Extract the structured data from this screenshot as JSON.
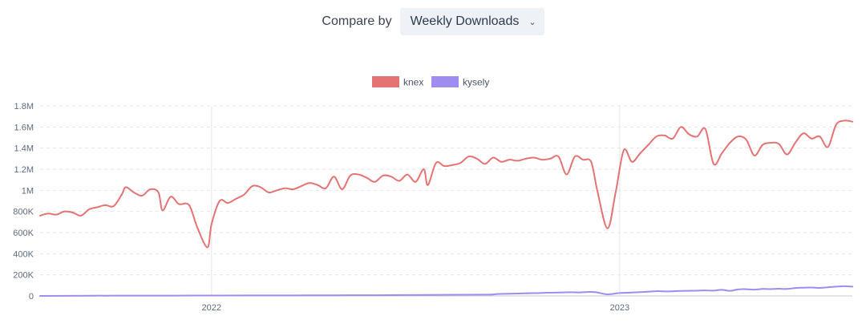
{
  "controls": {
    "compare_label": "Compare by",
    "compare_value": "Weekly Downloads",
    "chevron_icon": "chevron-down-icon"
  },
  "chart_data": {
    "type": "line",
    "legend_placement": "top-center",
    "grid": true,
    "ylim": [
      0,
      1800000
    ],
    "y_ticks": [
      0,
      200000,
      400000,
      600000,
      800000,
      1000000,
      1200000,
      1400000,
      1600000,
      1800000
    ],
    "y_tick_labels": [
      "0",
      "200K",
      "400K",
      "600K",
      "800K",
      "1M",
      "1.2M",
      "1.4M",
      "1.6M",
      "1.8M"
    ],
    "x_tick_labels": [
      "2022",
      "2023"
    ],
    "x_tick_values": [
      2022.0,
      2023.0
    ],
    "x_range": [
      2021.58,
      2023.57
    ],
    "series": [
      {
        "name": "knex",
        "color": "#e57373",
        "points": [
          [
            2021.58,
            760000
          ],
          [
            2021.6,
            780000
          ],
          [
            2021.62,
            770000
          ],
          [
            2021.64,
            800000
          ],
          [
            2021.66,
            790000
          ],
          [
            2021.68,
            760000
          ],
          [
            2021.7,
            820000
          ],
          [
            2021.72,
            840000
          ],
          [
            2021.74,
            860000
          ],
          [
            2021.76,
            850000
          ],
          [
            2021.78,
            960000
          ],
          [
            2021.79,
            1030000
          ],
          [
            2021.81,
            980000
          ],
          [
            2021.83,
            950000
          ],
          [
            2021.85,
            1010000
          ],
          [
            2021.87,
            980000
          ],
          [
            2021.88,
            810000
          ],
          [
            2021.9,
            940000
          ],
          [
            2021.92,
            870000
          ],
          [
            2021.945,
            860000
          ],
          [
            2021.965,
            650000
          ],
          [
            2021.99,
            460000
          ],
          [
            2022.0,
            680000
          ],
          [
            2022.02,
            900000
          ],
          [
            2022.04,
            880000
          ],
          [
            2022.06,
            920000
          ],
          [
            2022.08,
            960000
          ],
          [
            2022.1,
            1040000
          ],
          [
            2022.12,
            1030000
          ],
          [
            2022.14,
            980000
          ],
          [
            2022.16,
            1000000
          ],
          [
            2022.18,
            1020000
          ],
          [
            2022.2,
            1010000
          ],
          [
            2022.22,
            1040000
          ],
          [
            2022.24,
            1070000
          ],
          [
            2022.26,
            1050000
          ],
          [
            2022.28,
            1020000
          ],
          [
            2022.3,
            1130000
          ],
          [
            2022.32,
            1010000
          ],
          [
            2022.34,
            1140000
          ],
          [
            2022.36,
            1150000
          ],
          [
            2022.38,
            1120000
          ],
          [
            2022.4,
            1080000
          ],
          [
            2022.42,
            1140000
          ],
          [
            2022.44,
            1130000
          ],
          [
            2022.46,
            1090000
          ],
          [
            2022.48,
            1150000
          ],
          [
            2022.5,
            1080000
          ],
          [
            2022.52,
            1200000
          ],
          [
            2022.53,
            1050000
          ],
          [
            2022.55,
            1260000
          ],
          [
            2022.57,
            1230000
          ],
          [
            2022.59,
            1240000
          ],
          [
            2022.61,
            1260000
          ],
          [
            2022.63,
            1320000
          ],
          [
            2022.65,
            1300000
          ],
          [
            2022.67,
            1250000
          ],
          [
            2022.69,
            1310000
          ],
          [
            2022.71,
            1270000
          ],
          [
            2022.73,
            1290000
          ],
          [
            2022.75,
            1280000
          ],
          [
            2022.77,
            1300000
          ],
          [
            2022.79,
            1310000
          ],
          [
            2022.81,
            1290000
          ],
          [
            2022.83,
            1300000
          ],
          [
            2022.85,
            1320000
          ],
          [
            2022.87,
            1150000
          ],
          [
            2022.89,
            1320000
          ],
          [
            2022.91,
            1290000
          ],
          [
            2022.93,
            1270000
          ],
          [
            2022.945,
            1000000
          ],
          [
            2022.97,
            640000
          ],
          [
            2022.99,
            980000
          ],
          [
            2023.01,
            1380000
          ],
          [
            2023.03,
            1270000
          ],
          [
            2023.05,
            1350000
          ],
          [
            2023.07,
            1430000
          ],
          [
            2023.09,
            1510000
          ],
          [
            2023.11,
            1520000
          ],
          [
            2023.13,
            1490000
          ],
          [
            2023.15,
            1600000
          ],
          [
            2023.17,
            1530000
          ],
          [
            2023.19,
            1510000
          ],
          [
            2023.21,
            1580000
          ],
          [
            2023.23,
            1250000
          ],
          [
            2023.25,
            1350000
          ],
          [
            2023.27,
            1450000
          ],
          [
            2023.29,
            1510000
          ],
          [
            2023.31,
            1480000
          ],
          [
            2023.33,
            1330000
          ],
          [
            2023.35,
            1430000
          ],
          [
            2023.37,
            1450000
          ],
          [
            2023.39,
            1440000
          ],
          [
            2023.41,
            1340000
          ],
          [
            2023.43,
            1450000
          ],
          [
            2023.45,
            1540000
          ],
          [
            2023.47,
            1490000
          ],
          [
            2023.49,
            1510000
          ],
          [
            2023.51,
            1410000
          ],
          [
            2023.53,
            1620000
          ],
          [
            2023.55,
            1660000
          ],
          [
            2023.57,
            1650000
          ]
        ]
      },
      {
        "name": "kysely",
        "color": "#a08cf0",
        "points": [
          [
            2021.58,
            0
          ],
          [
            2021.7,
            2000
          ],
          [
            2021.8,
            3000
          ],
          [
            2021.9,
            3000
          ],
          [
            2022.0,
            4000
          ],
          [
            2022.1,
            5000
          ],
          [
            2022.2,
            5000
          ],
          [
            2022.3,
            6000
          ],
          [
            2022.4,
            7000
          ],
          [
            2022.5,
            9000
          ],
          [
            2022.6,
            11000
          ],
          [
            2022.68,
            12000
          ],
          [
            2022.7,
            18000
          ],
          [
            2022.72,
            20000
          ],
          [
            2022.74,
            22000
          ],
          [
            2022.76,
            24000
          ],
          [
            2022.78,
            26000
          ],
          [
            2022.8,
            27000
          ],
          [
            2022.82,
            30000
          ],
          [
            2022.84,
            31000
          ],
          [
            2022.86,
            33000
          ],
          [
            2022.88,
            35000
          ],
          [
            2022.9,
            33000
          ],
          [
            2022.92,
            37000
          ],
          [
            2022.94,
            36000
          ],
          [
            2022.97,
            15000
          ],
          [
            2023.0,
            28000
          ],
          [
            2023.03,
            32000
          ],
          [
            2023.06,
            38000
          ],
          [
            2023.09,
            45000
          ],
          [
            2023.12,
            43000
          ],
          [
            2023.15,
            47000
          ],
          [
            2023.18,
            49000
          ],
          [
            2023.21,
            52000
          ],
          [
            2023.23,
            50000
          ],
          [
            2023.25,
            58000
          ],
          [
            2023.27,
            48000
          ],
          [
            2023.29,
            62000
          ],
          [
            2023.31,
            64000
          ],
          [
            2023.33,
            60000
          ],
          [
            2023.35,
            66000
          ],
          [
            2023.37,
            65000
          ],
          [
            2023.39,
            68000
          ],
          [
            2023.41,
            66000
          ],
          [
            2023.43,
            75000
          ],
          [
            2023.45,
            78000
          ],
          [
            2023.47,
            80000
          ],
          [
            2023.49,
            76000
          ],
          [
            2023.51,
            82000
          ],
          [
            2023.53,
            88000
          ],
          [
            2023.55,
            92000
          ],
          [
            2023.57,
            88000
          ]
        ]
      }
    ]
  }
}
